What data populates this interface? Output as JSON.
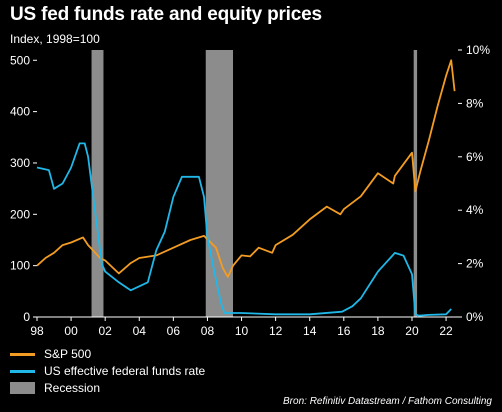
{
  "title": "US fed funds rate and equity prices",
  "subtitle": "Index, 1998=100",
  "source": "Bron: Refinitiv Datastream / Fathom Consulting",
  "colors": {
    "background": "#000000",
    "sp500": "#F39C23",
    "fedfunds": "#1FB8E8",
    "recession": "#8C8C8C",
    "text": "#FFFFFF"
  },
  "chart_data": {
    "type": "line",
    "title": "US fed funds rate and equity prices",
    "subtitle": "Index, 1998=100",
    "x_range": [
      1998,
      2022.7
    ],
    "x_ticks": [
      1998,
      2000,
      2002,
      2004,
      2006,
      2008,
      2010,
      2012,
      2014,
      2016,
      2018,
      2020,
      2022
    ],
    "x_tick_labels": [
      "98",
      "00",
      "02",
      "04",
      "06",
      "08",
      "10",
      "12",
      "14",
      "16",
      "18",
      "20",
      "22"
    ],
    "y_left": {
      "range": [
        0,
        520
      ],
      "ticks": [
        0,
        100,
        200,
        300,
        400,
        500
      ],
      "tick_labels": [
        "0",
        "100",
        "200",
        "300",
        "400",
        "500"
      ]
    },
    "y_right": {
      "range": [
        0,
        10
      ],
      "ticks": [
        0,
        2,
        4,
        6,
        8,
        10
      ],
      "tick_labels": [
        "0%",
        "2%",
        "4%",
        "6%",
        "8%",
        "10%"
      ]
    },
    "grid": false,
    "legend_position": "bottom-left",
    "recessions": [
      {
        "start": 2001.2,
        "end": 2001.9
      },
      {
        "start": 2007.9,
        "end": 2009.5
      },
      {
        "start": 2020.1,
        "end": 2020.3
      }
    ],
    "series": [
      {
        "name": "S&P 500",
        "axis": "left",
        "color": "#F39C23",
        "x": [
          1998.0,
          1998.5,
          1999.0,
          1999.5,
          2000.0,
          2000.7,
          2001.0,
          2001.7,
          2002.0,
          2002.8,
          2003.5,
          2004.0,
          2005.0,
          2006.0,
          2007.0,
          2007.8,
          2008.5,
          2008.9,
          2009.2,
          2009.5,
          2010.0,
          2010.5,
          2011.0,
          2011.8,
          2012.0,
          2013.0,
          2014.0,
          2015.0,
          2015.8,
          2016.0,
          2017.0,
          2018.0,
          2018.9,
          2019.0,
          2020.0,
          2020.2,
          2020.5,
          2021.0,
          2021.5,
          2022.0,
          2022.3,
          2022.5
        ],
        "y": [
          100,
          115,
          125,
          140,
          145,
          155,
          140,
          115,
          110,
          85,
          105,
          115,
          120,
          135,
          150,
          158,
          135,
          95,
          78,
          100,
          120,
          118,
          135,
          125,
          140,
          160,
          190,
          215,
          200,
          210,
          235,
          280,
          260,
          275,
          320,
          245,
          285,
          345,
          410,
          470,
          500,
          440
        ]
      },
      {
        "name": "US effective federal funds rate",
        "axis": "right",
        "color": "#1FB8E8",
        "x": [
          1998.0,
          1998.7,
          1999.0,
          1999.5,
          2000.0,
          2000.5,
          2000.8,
          2001.0,
          2001.3,
          2001.8,
          2002.0,
          2002.8,
          2003.5,
          2004.5,
          2005.0,
          2005.5,
          2006.0,
          2006.5,
          2007.5,
          2007.8,
          2008.0,
          2008.3,
          2008.8,
          2009.0,
          2010.0,
          2012.0,
          2014.0,
          2015.9,
          2016.5,
          2017.0,
          2018.0,
          2019.0,
          2019.5,
          2020.0,
          2020.2,
          2020.4,
          2021.0,
          2022.0,
          2022.3
        ],
        "y": [
          5.6,
          5.5,
          4.8,
          5.0,
          5.6,
          6.5,
          6.5,
          6.0,
          4.5,
          2.0,
          1.7,
          1.3,
          1.0,
          1.3,
          2.5,
          3.2,
          4.5,
          5.25,
          5.25,
          4.5,
          3.0,
          2.0,
          0.5,
          0.15,
          0.15,
          0.1,
          0.1,
          0.2,
          0.4,
          0.7,
          1.7,
          2.4,
          2.3,
          1.6,
          0.1,
          0.05,
          0.08,
          0.1,
          0.3
        ]
      }
    ]
  },
  "legend": {
    "sp500": "S&P 500",
    "fedfunds": "US effective federal funds rate",
    "recession": "Recession"
  }
}
